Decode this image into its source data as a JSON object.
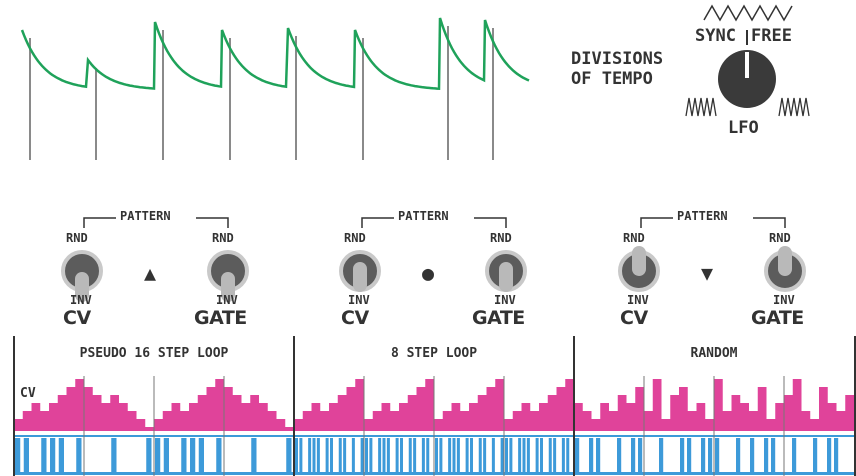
{
  "mode_selector": {
    "heading_line1": "DIVISIONS",
    "heading_line2": "OF TEMPO",
    "sync_label": "SYNC",
    "free_label": "FREE",
    "lfo_label": "LFO"
  },
  "pattern_groups": [
    {
      "pattern_label": "PATTERN",
      "rnd_label": "RND",
      "inv_label": "INV",
      "cv_label": "CV",
      "gate_label": "GATE",
      "center_symbol": "▲",
      "cv_toggle": "down",
      "gate_toggle": "down"
    },
    {
      "pattern_label": "PATTERN",
      "rnd_label": "RND",
      "inv_label": "INV",
      "cv_label": "CV",
      "gate_label": "GATE",
      "center_symbol": "●",
      "cv_toggle": "center",
      "gate_toggle": "center"
    },
    {
      "pattern_label": "PATTERN",
      "rnd_label": "RND",
      "inv_label": "INV",
      "cv_label": "CV",
      "gate_label": "GATE",
      "center_symbol": "▼",
      "cv_toggle": "up",
      "gate_toggle": "up"
    }
  ],
  "sequence_chart": {
    "cv_label": "CV",
    "sections": [
      "PSEUDO 16 STEP LOOP",
      "8 STEP LOOP",
      "RANDOM"
    ],
    "colors": {
      "cv": "#e0439a",
      "gate": "#3d9ad9",
      "envelope": "#1fa25a",
      "bars": "#8a8a8a"
    }
  }
}
